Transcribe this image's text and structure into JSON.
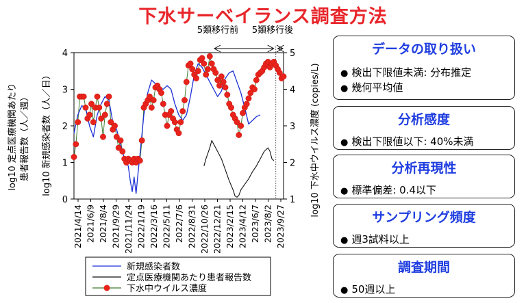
{
  "title": "下水サーベイランス調査方法",
  "chart_data": {
    "type": "line",
    "x_tick_labels": [
      "2021/4/14",
      "2021/6/9",
      "2021/8/4",
      "2021/9/29",
      "2021/11/24",
      "2022/1/19",
      "2022/3/16",
      "2022/5/11",
      "2022/7/6",
      "2022/8/31",
      "2022/10/26",
      "2022/12/21",
      "2023/2/15",
      "2023/4/12",
      "2023/6/7",
      "2023/8/2",
      "2023/9/27"
    ],
    "left_axis": {
      "label_line1": "log10 定点医療機関あたり",
      "label_line2": "患者報告数（人／週）",
      "label_line3": "log10 新規感染者数（人／日）",
      "ticks": [
        "0",
        "1",
        "2",
        "3",
        "4"
      ],
      "ylim": [
        0,
        4
      ]
    },
    "right_axis": {
      "label": "log10 下水中ウイルス濃度 (copies/L)",
      "ticks": [
        "1",
        "2",
        "3",
        "4",
        "5"
      ],
      "ylim": [
        1,
        5
      ]
    },
    "period_labels": {
      "before": "5類移行前",
      "after": "5類移行後"
    },
    "divider_week": 104,
    "legend": [
      "新規感染者数",
      "定点医療機関あたり患者報告数",
      "下水中ウイルス濃度"
    ],
    "colors": {
      "new_cases": "#1a2fd6",
      "sentinel": "#111111",
      "wastewater": "#e8231b",
      "wastewater_line": "#3f7a2f"
    },
    "series": [
      {
        "name": "新規感染者数",
        "axis": "left",
        "points": [
          [
            0,
            1.8
          ],
          [
            2,
            2.3
          ],
          [
            4,
            2.55
          ],
          [
            6,
            2.5
          ],
          [
            8,
            2.0
          ],
          [
            10,
            1.7
          ],
          [
            12,
            2.3
          ],
          [
            14,
            2.6
          ],
          [
            16,
            2.8
          ],
          [
            18,
            2.7
          ],
          [
            20,
            2.1
          ],
          [
            22,
            1.9
          ],
          [
            24,
            1.5
          ],
          [
            26,
            1.1
          ],
          [
            28,
            0.9
          ],
          [
            29,
            0.5
          ],
          [
            30,
            0.2
          ],
          [
            31,
            0.6
          ],
          [
            32,
            0.15
          ],
          [
            33,
            0.7
          ],
          [
            34,
            1.2
          ],
          [
            36,
            2.3
          ],
          [
            38,
            2.9
          ],
          [
            40,
            3.25
          ],
          [
            42,
            3.15
          ],
          [
            44,
            3.05
          ],
          [
            46,
            3.0
          ],
          [
            48,
            3.1
          ],
          [
            50,
            3.0
          ],
          [
            52,
            2.6
          ],
          [
            54,
            2.3
          ],
          [
            56,
            2.15
          ],
          [
            58,
            2.3
          ],
          [
            60,
            2.8
          ],
          [
            62,
            3.4
          ],
          [
            64,
            3.7
          ],
          [
            66,
            3.6
          ],
          [
            68,
            3.4
          ],
          [
            70,
            3.2
          ],
          [
            72,
            3.0
          ],
          [
            74,
            2.8
          ],
          [
            76,
            2.95
          ],
          [
            78,
            3.3
          ],
          [
            80,
            3.45
          ],
          [
            82,
            3.5
          ],
          [
            84,
            3.2
          ],
          [
            86,
            2.9
          ],
          [
            88,
            2.5
          ],
          [
            90,
            2.05
          ],
          [
            92,
            2.15
          ],
          [
            94,
            2.25
          ],
          [
            96,
            2.3
          ]
        ]
      },
      {
        "name": "定点医療機関あたり患者報告数",
        "axis": "left",
        "points": [
          [
            67,
            0.9
          ],
          [
            68,
            1.1
          ],
          [
            70,
            1.4
          ],
          [
            71,
            1.6
          ],
          [
            72,
            1.5
          ],
          [
            74,
            1.3
          ],
          [
            76,
            1.1
          ],
          [
            78,
            0.8
          ],
          [
            80,
            0.5
          ],
          [
            82,
            0.25
          ],
          [
            83,
            0.08
          ],
          [
            84,
            0.05
          ],
          [
            85,
            0.1
          ],
          [
            86,
            0.25
          ],
          [
            88,
            0.4
          ],
          [
            90,
            0.55
          ],
          [
            92,
            0.75
          ],
          [
            94,
            0.9
          ],
          [
            96,
            1.1
          ],
          [
            98,
            1.3
          ],
          [
            100,
            1.4
          ],
          [
            101,
            1.3
          ],
          [
            102,
            1.1
          ],
          [
            103,
            1.05
          ]
        ]
      },
      {
        "name": "下水中ウイルス濃度",
        "axis": "right",
        "points": [
          [
            0,
            2.15
          ],
          [
            1,
            2.5
          ],
          [
            2,
            3.1
          ],
          [
            3,
            3.8
          ],
          [
            4,
            3.8
          ],
          [
            5,
            3.8
          ],
          [
            6,
            3.5
          ],
          [
            7,
            3.2
          ],
          [
            8,
            3.3
          ],
          [
            9,
            3.6
          ],
          [
            10,
            3.1
          ],
          [
            11,
            3.5
          ],
          [
            12,
            3.8
          ],
          [
            13,
            3.5
          ],
          [
            14,
            3.2
          ],
          [
            15,
            2.7
          ],
          [
            16,
            3.3
          ],
          [
            17,
            3.6
          ],
          [
            18,
            3.8
          ],
          [
            19,
            3.1
          ],
          [
            20,
            2.9
          ],
          [
            21,
            3.0
          ],
          [
            22,
            2.7
          ],
          [
            23,
            2.4
          ],
          [
            24,
            2.6
          ],
          [
            25,
            2.3
          ],
          [
            26,
            2.1
          ],
          [
            27,
            2.0
          ],
          [
            28,
            2.1
          ],
          [
            29,
            2.05
          ],
          [
            30,
            2.0
          ],
          [
            31,
            2.1
          ],
          [
            32,
            2.0
          ],
          [
            33,
            2.1
          ],
          [
            34,
            2.05
          ],
          [
            35,
            2.6
          ],
          [
            36,
            3.5
          ],
          [
            37,
            3.6
          ],
          [
            38,
            3.7
          ],
          [
            39,
            3.8
          ],
          [
            40,
            3.5
          ],
          [
            41,
            3.7
          ],
          [
            42,
            4.05
          ],
          [
            43,
            4.1
          ],
          [
            44,
            4.0
          ],
          [
            45,
            3.9
          ],
          [
            46,
            3.6
          ],
          [
            47,
            3.3
          ],
          [
            48,
            3.0
          ],
          [
            49,
            3.3
          ],
          [
            50,
            3.4
          ],
          [
            51,
            3.2
          ],
          [
            52,
            3.1
          ],
          [
            53,
            2.9
          ],
          [
            54,
            2.8
          ],
          [
            55,
            3.1
          ],
          [
            56,
            3.4
          ],
          [
            57,
            3.7
          ],
          [
            58,
            4.2
          ],
          [
            59,
            4.65
          ],
          [
            60,
            4.7
          ],
          [
            61,
            4.55
          ],
          [
            62,
            4.4
          ],
          [
            63,
            4.3
          ],
          [
            64,
            4.5
          ],
          [
            65,
            4.8
          ],
          [
            66,
            4.85
          ],
          [
            67,
            4.7
          ],
          [
            68,
            4.4
          ],
          [
            69,
            4.55
          ],
          [
            70,
            4.9
          ],
          [
            71,
            4.7
          ],
          [
            72,
            4.55
          ],
          [
            73,
            4.45
          ],
          [
            74,
            4.25
          ],
          [
            75,
            4.1
          ],
          [
            76,
            4.35
          ],
          [
            77,
            4.2
          ],
          [
            78,
            4.05
          ],
          [
            79,
            3.85
          ],
          [
            80,
            3.6
          ],
          [
            81,
            3.5
          ],
          [
            82,
            3.3
          ],
          [
            83,
            3.2
          ],
          [
            84,
            3.1
          ],
          [
            85,
            2.75
          ],
          [
            86,
            3.0
          ],
          [
            87,
            3.35
          ],
          [
            88,
            3.5
          ],
          [
            89,
            3.6
          ],
          [
            90,
            3.75
          ],
          [
            91,
            3.9
          ],
          [
            92,
            4.05
          ],
          [
            93,
            4.0
          ],
          [
            94,
            4.25
          ],
          [
            95,
            4.4
          ],
          [
            96,
            4.45
          ],
          [
            97,
            4.5
          ],
          [
            98,
            4.6
          ],
          [
            99,
            4.7
          ],
          [
            100,
            4.75
          ],
          [
            101,
            4.6
          ],
          [
            102,
            4.7
          ],
          [
            103,
            4.75
          ],
          [
            104,
            4.65
          ],
          [
            105,
            4.55
          ],
          [
            106,
            4.45
          ],
          [
            107,
            4.3
          ],
          [
            108,
            4.35
          ]
        ]
      }
    ],
    "x_range": [
      0,
      108
    ]
  },
  "panels": [
    {
      "title": "データの取り扱い",
      "items": [
        "検出下限値未満: 分布推定",
        "幾何平均値"
      ]
    },
    {
      "title": "分析感度",
      "items": [
        "検出下限値以下: 40%未満"
      ]
    },
    {
      "title": "分析再現性",
      "items": [
        "標準偏差: 0.4以下"
      ]
    },
    {
      "title": "サンプリング頻度",
      "items": [
        "週3試料以上"
      ]
    },
    {
      "title": "調査期間",
      "items": [
        "50週以上"
      ]
    }
  ],
  "bullet": "●"
}
